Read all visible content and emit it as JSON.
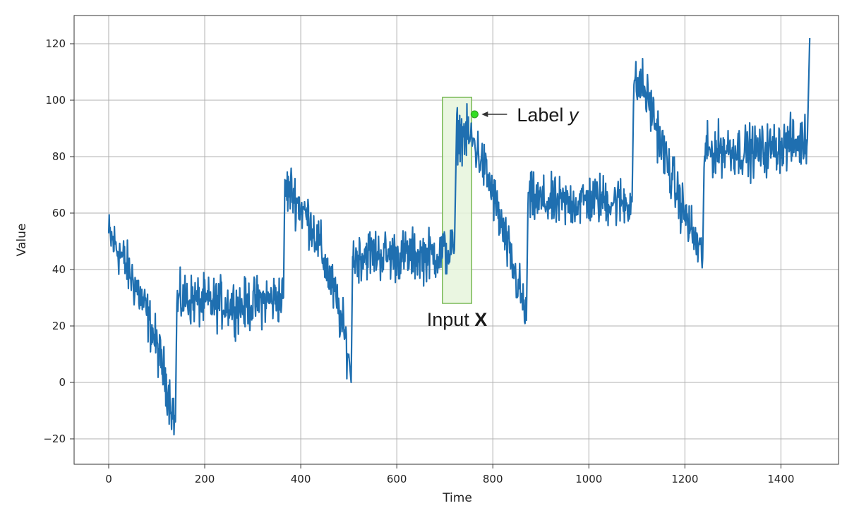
{
  "chart_data": {
    "type": "line",
    "xlabel": "Time",
    "ylabel": "Value",
    "xlim": [
      -72,
      1520
    ],
    "ylim": [
      -29,
      130
    ],
    "grid": true,
    "x_ticks": [
      0,
      200,
      400,
      600,
      800,
      1000,
      1200,
      1400
    ],
    "x_tick_labels": [
      "0",
      "200",
      "400",
      "600",
      "800",
      "1000",
      "1200",
      "1400"
    ],
    "y_ticks": [
      -20,
      0,
      20,
      40,
      60,
      80,
      100,
      120
    ],
    "y_tick_labels": [
      "−20",
      "0",
      "20",
      "40",
      "60",
      "80",
      "100",
      "120"
    ],
    "series_color": "#1f6fb0",
    "series": [
      {
        "x": [
          0,
          20,
          40,
          60,
          80,
          100,
          120,
          139,
          142,
          160,
          200,
          240,
          280,
          320,
          364,
          367,
          380,
          400,
          420,
          440,
          460,
          480,
          500,
          505,
          508,
          540,
          580,
          620,
          660,
          700,
          720,
          725,
          740,
          760,
          780,
          800,
          820,
          840,
          860,
          870,
          873,
          900,
          940,
          980,
          1020,
          1060,
          1090,
          1093,
          1110,
          1130,
          1150,
          1170,
          1190,
          1210,
          1230,
          1237,
          1240,
          1280,
          1320,
          1360,
          1400,
          1440,
          1455,
          1460
        ],
        "y": [
          52,
          47,
          40,
          33,
          24,
          13,
          0,
          -14,
          28,
          30,
          28,
          28,
          27,
          29,
          30,
          68,
          68,
          62,
          57,
          48,
          37,
          25,
          10,
          0,
          44,
          46,
          45,
          45,
          45,
          46,
          47,
          88,
          88,
          85,
          77,
          67,
          54,
          42,
          30,
          22,
          65,
          64,
          63,
          64,
          65,
          64,
          64,
          104,
          106,
          97,
          85,
          74,
          64,
          55,
          47,
          44,
          81,
          83,
          82,
          82,
          84,
          85,
          86,
          122
        ],
        "noise": 4.5
      }
    ],
    "annotations": [
      {
        "type": "highlight",
        "label": "Input ",
        "label_emph": "X",
        "x_range": [
          695,
          756
        ],
        "y_range": [
          28,
          101
        ],
        "fill": "#e6f5dc",
        "stroke": "#5cab32"
      },
      {
        "type": "point",
        "label": "Label ",
        "label_emph": "y",
        "x": 762,
        "y": 95,
        "color": "#33dd22"
      }
    ]
  }
}
